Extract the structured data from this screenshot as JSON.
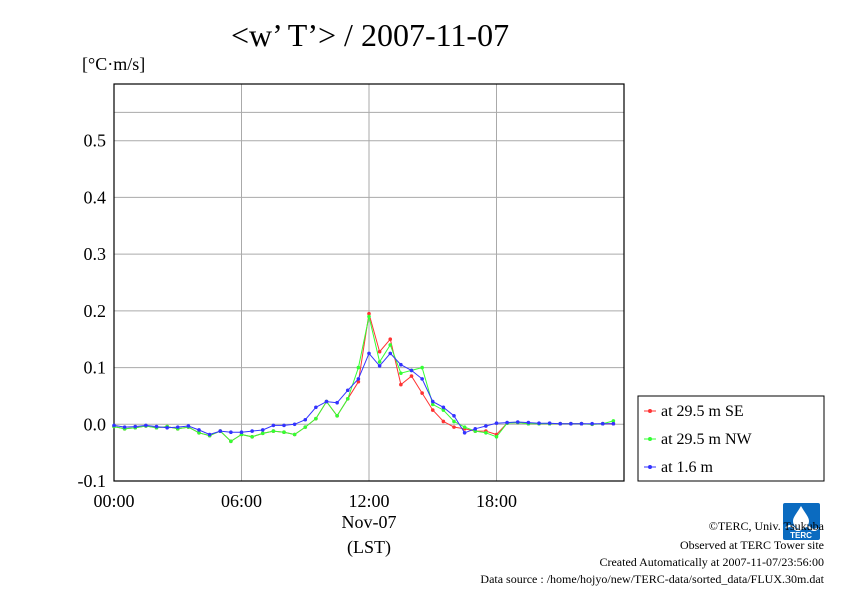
{
  "header": {
    "title": "<w’ T’> / 2007-11-07",
    "unit": "[°C·m/s]"
  },
  "xaxis": {
    "date_label": "Nov-07",
    "timezone_label": "(LST)"
  },
  "credits": [
    "©TERC, Univ. Tsukuba",
    "Observed at TERC Tower site",
    "Created Automatically at 2007-11-07/23:56:00",
    "Data source : /home/hojyo/new/TERC-data/sorted_data/FLUX.30m.dat"
  ],
  "logo": {
    "text": "TERC"
  },
  "chart_data": {
    "type": "line",
    "title": "<w’ T’> / 2007-11-07",
    "ylabel": "[°C·m/s]",
    "xlabel": "Nov-07 (LST)",
    "xlim": [
      0,
      24
    ],
    "ylim": [
      -0.1,
      0.6
    ],
    "xticks": [
      0,
      6,
      12,
      18
    ],
    "xtick_labels": [
      "00:00",
      "06:00",
      "12:00",
      "18:00"
    ],
    "yticks": [
      -0.1,
      0.0,
      0.1,
      0.2,
      0.3,
      0.4,
      0.5
    ],
    "ytick_labels": [
      "-0.1",
      "0.0",
      "0.1",
      "0.2",
      "0.3",
      "0.4",
      "0.5"
    ],
    "grid": true,
    "legend_position": "right",
    "x": [
      0.0,
      0.5,
      1.0,
      1.5,
      2.0,
      2.5,
      3.0,
      3.5,
      4.0,
      4.5,
      5.0,
      5.5,
      6.0,
      6.5,
      7.0,
      7.5,
      8.0,
      8.5,
      9.0,
      9.5,
      10.0,
      10.5,
      11.0,
      11.5,
      12.0,
      12.5,
      13.0,
      13.5,
      14.0,
      14.5,
      15.0,
      15.5,
      16.0,
      16.5,
      17.0,
      17.5,
      18.0,
      18.5,
      19.0,
      19.5,
      20.0,
      20.5,
      21.0,
      21.5,
      22.0,
      22.5,
      23.0,
      23.5
    ],
    "series": [
      {
        "name": "at 29.5 m SE",
        "color": "#ff3333",
        "values": [
          -0.004,
          -0.008,
          -0.006,
          -0.003,
          -0.006,
          -0.004,
          -0.008,
          -0.005,
          -0.015,
          -0.02,
          -0.012,
          -0.03,
          -0.018,
          -0.022,
          -0.016,
          -0.012,
          -0.014,
          -0.018,
          -0.005,
          0.01,
          0.04,
          0.015,
          0.045,
          0.075,
          0.195,
          0.128,
          0.15,
          0.07,
          0.085,
          0.055,
          0.025,
          0.005,
          -0.005,
          -0.008,
          -0.012,
          -0.012,
          -0.018,
          0.002,
          0.003,
          0.001,
          0.001,
          0.001,
          0.001,
          0.001,
          0.001,
          0.0,
          0.001,
          0.001
        ]
      },
      {
        "name": "at 29.5 m NW",
        "color": "#33ff33",
        "values": [
          -0.004,
          -0.008,
          -0.006,
          -0.003,
          -0.006,
          -0.004,
          -0.008,
          -0.005,
          -0.015,
          -0.02,
          -0.012,
          -0.03,
          -0.018,
          -0.022,
          -0.016,
          -0.012,
          -0.014,
          -0.018,
          -0.005,
          0.01,
          0.04,
          0.015,
          0.045,
          0.1,
          0.19,
          0.11,
          0.14,
          0.09,
          0.095,
          0.1,
          0.035,
          0.025,
          0.005,
          -0.005,
          -0.012,
          -0.015,
          -0.022,
          0.002,
          0.003,
          0.001,
          0.001,
          0.001,
          0.001,
          0.001,
          0.001,
          0.0,
          0.001,
          0.006
        ]
      },
      {
        "name": "at 1.6 m",
        "color": "#3333ff",
        "values": [
          -0.002,
          -0.005,
          -0.004,
          -0.002,
          -0.004,
          -0.006,
          -0.005,
          -0.003,
          -0.01,
          -0.018,
          -0.012,
          -0.014,
          -0.014,
          -0.012,
          -0.01,
          -0.002,
          -0.002,
          0.0,
          0.008,
          0.03,
          0.04,
          0.038,
          0.06,
          0.08,
          0.125,
          0.103,
          0.125,
          0.105,
          0.095,
          0.08,
          0.04,
          0.03,
          0.015,
          -0.015,
          -0.008,
          -0.003,
          0.002,
          0.003,
          0.004,
          0.003,
          0.002,
          0.002,
          0.001,
          0.001,
          0.001,
          0.001,
          0.001,
          0.001
        ]
      }
    ]
  }
}
